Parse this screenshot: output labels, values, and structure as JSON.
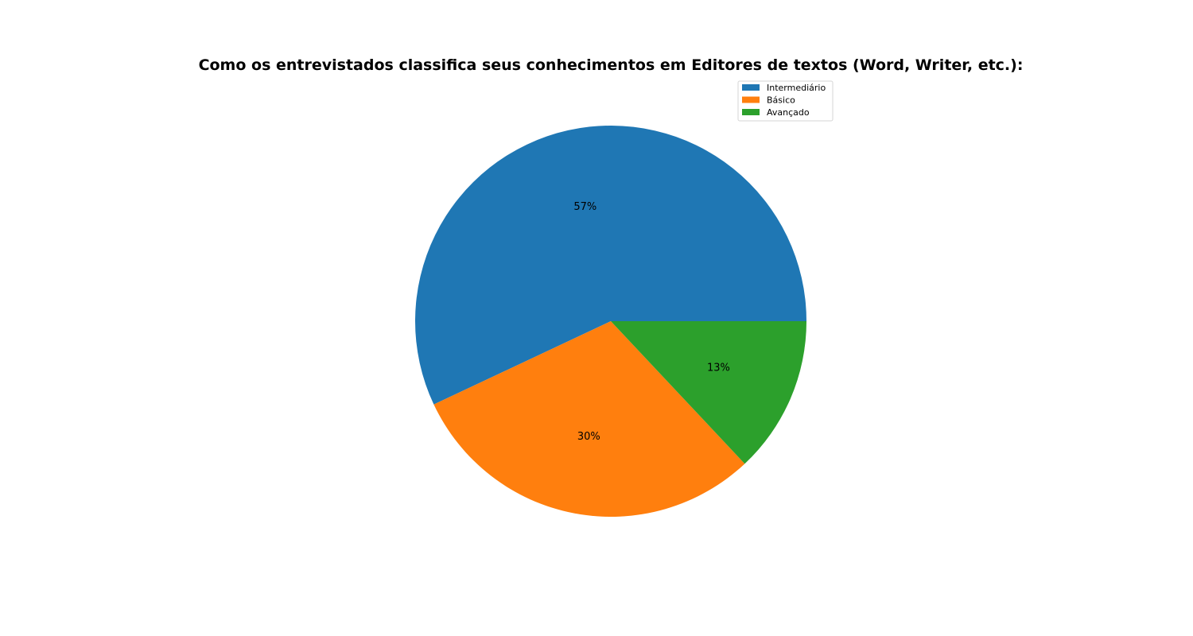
{
  "chart_data": {
    "type": "pie",
    "title": "Como os entrevistados classifica seus conhecimentos em Editores de textos (Word, Writer, etc.):",
    "categories": [
      "Intermediário",
      "Básico",
      "Avançado"
    ],
    "values": [
      57,
      30,
      13
    ],
    "labels": [
      "57%",
      "30%",
      "13%"
    ],
    "colors": [
      "#1f77b4",
      "#ff7f0e",
      "#2ca02c"
    ],
    "start_angle_deg": 0,
    "direction": "counterclockwise",
    "legend": {
      "placement": "top-right",
      "entries": [
        "Intermediário",
        "Básico",
        "Avançado"
      ]
    }
  }
}
